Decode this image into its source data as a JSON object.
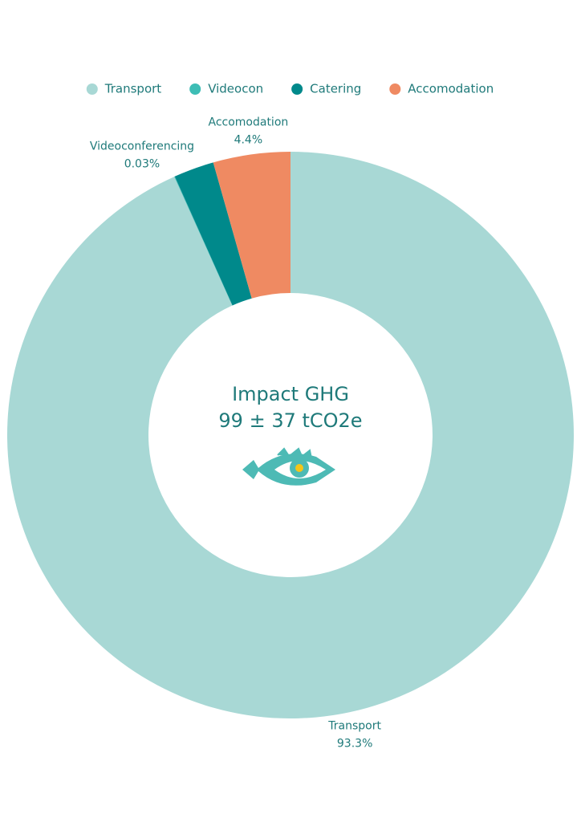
{
  "chart_data": {
    "type": "donut",
    "center_title": "Impact GHG",
    "center_subtitle": "99 ± 37 tCO2e",
    "categories": [
      "Transport",
      "Videocon",
      "Catering",
      "Accomodation"
    ],
    "slice_labels": [
      "Transport",
      "Videoconferencing",
      null,
      "Accomodation"
    ],
    "values": [
      93.3,
      0.03,
      2.3,
      4.4
    ],
    "value_labels": [
      "93.3%",
      "0.03%",
      null,
      "4.4%"
    ],
    "colors": [
      "#a8d8d5",
      "#3dbdb5",
      "#00898b",
      "#ef8a62"
    ],
    "legend": "top"
  }
}
